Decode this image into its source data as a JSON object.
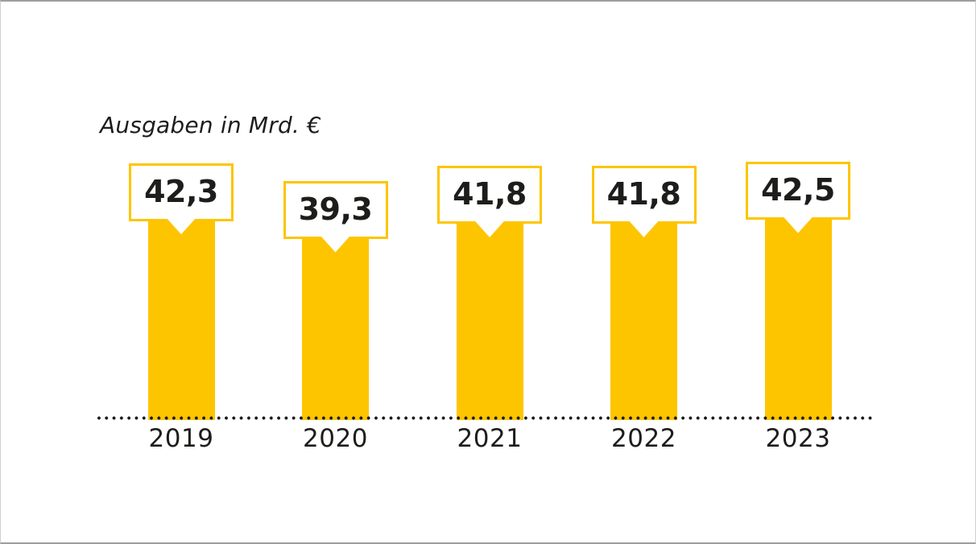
{
  "chart_data": {
    "type": "bar",
    "title": "Ausgaben in Mrd. €",
    "unit": "Mrd. €",
    "categories": [
      "2019",
      "2020",
      "2021",
      "2022",
      "2023"
    ],
    "values": [
      42.3,
      39.3,
      41.8,
      41.8,
      42.5
    ],
    "value_labels": [
      "42,3",
      "39,3",
      "41,8",
      "41,8",
      "42,5"
    ],
    "ylim": [
      0,
      45
    ],
    "grid": false,
    "legend": false,
    "baseline_style": "dotted",
    "colors": {
      "bar": "#FDC500",
      "label_box_border": "#FDC500",
      "label_box_fill": "#FFFFFF",
      "text": "#1D1D1B",
      "baseline_dots": "#1B1B1B"
    }
  }
}
